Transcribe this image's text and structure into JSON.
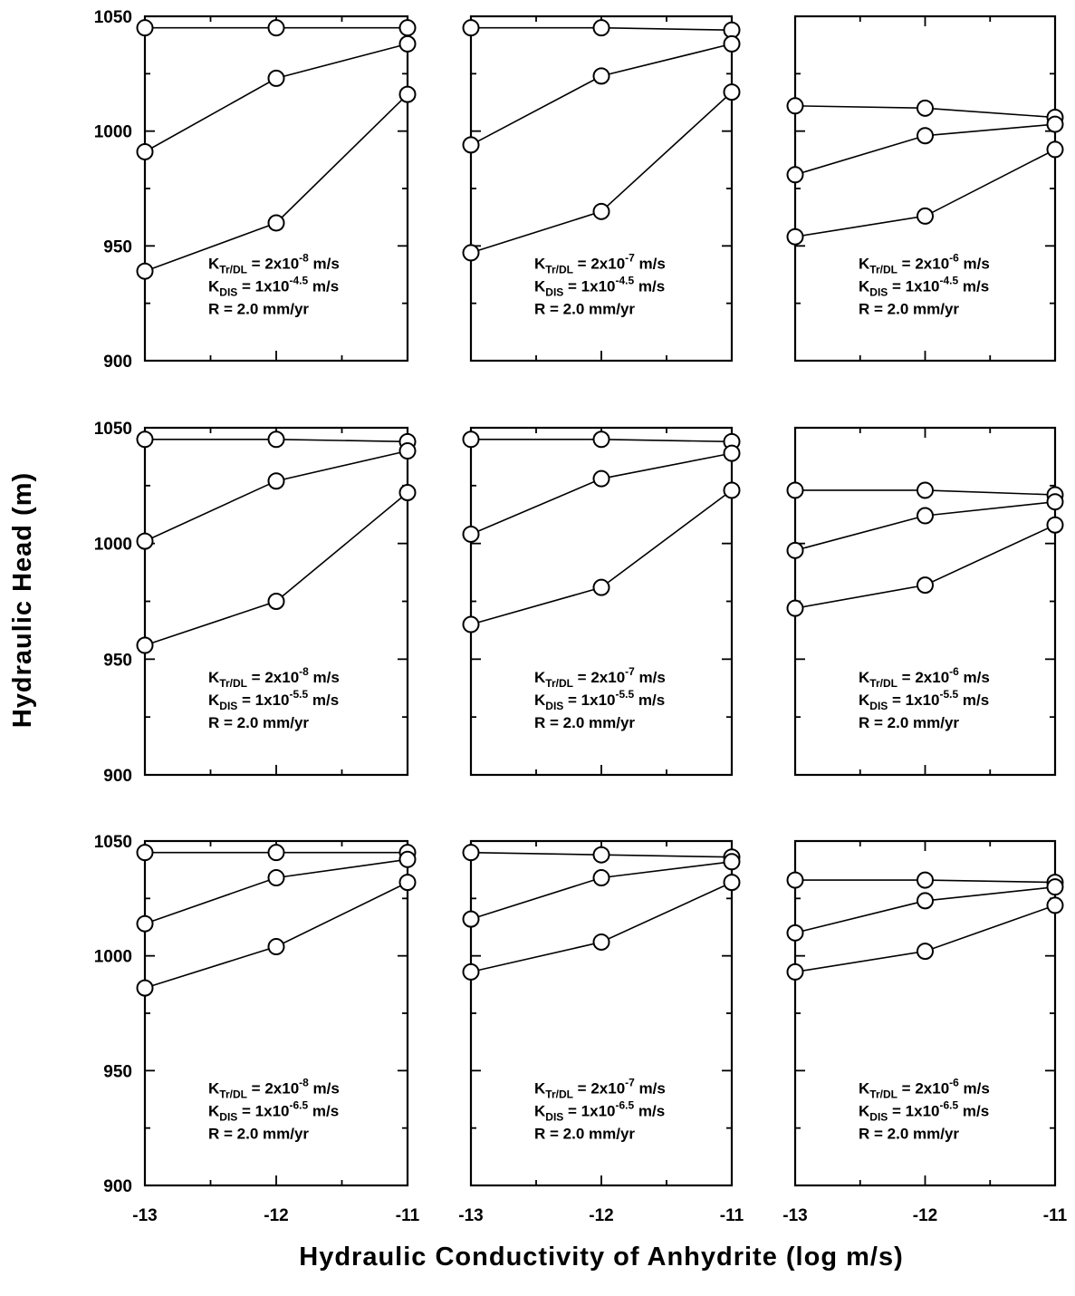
{
  "figure": {
    "ylabel": "Hydraulic Head (m)",
    "xlabel": "Hydraulic Conductivity of Anhydrite (log m/s)"
  },
  "chart_data": [
    {
      "type": "line",
      "xlabel": "",
      "ylabel": "",
      "x": [
        -13,
        -12,
        -11
      ],
      "xlim": [
        -13,
        -11
      ],
      "ylim": [
        900,
        1050
      ],
      "xticks": [
        "-13",
        "-12",
        "-11"
      ],
      "yticks": [
        "900",
        "950",
        "1000",
        "1050"
      ],
      "grid": false,
      "annotation": {
        "k_tr_dl": "2x10",
        "k_tr_dl_exp": "-8",
        "k_dis": "1x10",
        "k_dis_exp": "-4.5",
        "rate": "R = 2.0 mm/yr"
      },
      "series": [
        {
          "values": [
            1045,
            1045,
            1045
          ]
        },
        {
          "values": [
            991,
            1023,
            1038
          ]
        },
        {
          "values": [
            939,
            960,
            1016
          ]
        }
      ]
    },
    {
      "type": "line",
      "xlabel": "",
      "ylabel": "",
      "x": [
        -13,
        -12,
        -11
      ],
      "xlim": [
        -13,
        -11
      ],
      "ylim": [
        900,
        1050
      ],
      "xticks": [
        "-13",
        "-12",
        "-11"
      ],
      "yticks": [
        "900",
        "950",
        "1000",
        "1050"
      ],
      "grid": false,
      "annotation": {
        "k_tr_dl": "2x10",
        "k_tr_dl_exp": "-7",
        "k_dis": "1x10",
        "k_dis_exp": "-4.5",
        "rate": "R = 2.0 mm/yr"
      },
      "series": [
        {
          "values": [
            1045,
            1045,
            1044
          ]
        },
        {
          "values": [
            994,
            1024,
            1038
          ]
        },
        {
          "values": [
            947,
            965,
            1017
          ]
        }
      ]
    },
    {
      "type": "line",
      "xlabel": "",
      "ylabel": "",
      "x": [
        -13,
        -12,
        -11
      ],
      "xlim": [
        -13,
        -11
      ],
      "ylim": [
        900,
        1050
      ],
      "xticks": [
        "-13",
        "-12",
        "-11"
      ],
      "yticks": [
        "900",
        "950",
        "1000",
        "1050"
      ],
      "grid": false,
      "annotation": {
        "k_tr_dl": "2x10",
        "k_tr_dl_exp": "-6",
        "k_dis": "1x10",
        "k_dis_exp": "-4.5",
        "rate": "R = 2.0 mm/yr"
      },
      "series": [
        {
          "values": [
            1011,
            1010,
            1006
          ]
        },
        {
          "values": [
            981,
            998,
            1003
          ]
        },
        {
          "values": [
            954,
            963,
            992
          ]
        }
      ]
    },
    {
      "type": "line",
      "xlabel": "",
      "ylabel": "",
      "x": [
        -13,
        -12,
        -11
      ],
      "xlim": [
        -13,
        -11
      ],
      "ylim": [
        900,
        1050
      ],
      "xticks": [
        "-13",
        "-12",
        "-11"
      ],
      "yticks": [
        "900",
        "950",
        "1000",
        "1050"
      ],
      "grid": false,
      "annotation": {
        "k_tr_dl": "2x10",
        "k_tr_dl_exp": "-8",
        "k_dis": "1x10",
        "k_dis_exp": "-5.5",
        "rate": "R = 2.0 mm/yr"
      },
      "series": [
        {
          "values": [
            1045,
            1045,
            1044
          ]
        },
        {
          "values": [
            1001,
            1027,
            1040
          ]
        },
        {
          "values": [
            956,
            975,
            1022
          ]
        }
      ]
    },
    {
      "type": "line",
      "xlabel": "",
      "ylabel": "",
      "x": [
        -13,
        -12,
        -11
      ],
      "xlim": [
        -13,
        -11
      ],
      "ylim": [
        900,
        1050
      ],
      "xticks": [
        "-13",
        "-12",
        "-11"
      ],
      "yticks": [
        "900",
        "950",
        "1000",
        "1050"
      ],
      "grid": false,
      "annotation": {
        "k_tr_dl": "2x10",
        "k_tr_dl_exp": "-7",
        "k_dis": "1x10",
        "k_dis_exp": "-5.5",
        "rate": "R = 2.0 mm/yr"
      },
      "series": [
        {
          "values": [
            1045,
            1045,
            1044
          ]
        },
        {
          "values": [
            1004,
            1028,
            1039
          ]
        },
        {
          "values": [
            965,
            981,
            1023
          ]
        }
      ]
    },
    {
      "type": "line",
      "xlabel": "",
      "ylabel": "",
      "x": [
        -13,
        -12,
        -11
      ],
      "xlim": [
        -13,
        -11
      ],
      "ylim": [
        900,
        1050
      ],
      "xticks": [
        "-13",
        "-12",
        "-11"
      ],
      "yticks": [
        "900",
        "950",
        "1000",
        "1050"
      ],
      "grid": false,
      "annotation": {
        "k_tr_dl": "2x10",
        "k_tr_dl_exp": "-6",
        "k_dis": "1x10",
        "k_dis_exp": "-5.5",
        "rate": "R = 2.0 mm/yr"
      },
      "series": [
        {
          "values": [
            1023,
            1023,
            1021
          ]
        },
        {
          "values": [
            997,
            1012,
            1018
          ]
        },
        {
          "values": [
            972,
            982,
            1008
          ]
        }
      ]
    },
    {
      "type": "line",
      "xlabel": "",
      "ylabel": "",
      "x": [
        -13,
        -12,
        -11
      ],
      "xlim": [
        -13,
        -11
      ],
      "ylim": [
        900,
        1050
      ],
      "xticks": [
        "-13",
        "-12",
        "-11"
      ],
      "yticks": [
        "900",
        "950",
        "1000",
        "1050"
      ],
      "grid": false,
      "annotation": {
        "k_tr_dl": "2x10",
        "k_tr_dl_exp": "-8",
        "k_dis": "1x10",
        "k_dis_exp": "-6.5",
        "rate": "R = 2.0 mm/yr"
      },
      "series": [
        {
          "values": [
            1045,
            1045,
            1045
          ]
        },
        {
          "values": [
            1014,
            1034,
            1042
          ]
        },
        {
          "values": [
            986,
            1004,
            1032
          ]
        }
      ]
    },
    {
      "type": "line",
      "xlabel": "",
      "ylabel": "",
      "x": [
        -13,
        -12,
        -11
      ],
      "xlim": [
        -13,
        -11
      ],
      "ylim": [
        900,
        1050
      ],
      "xticks": [
        "-13",
        "-12",
        "-11"
      ],
      "yticks": [
        "900",
        "950",
        "1000",
        "1050"
      ],
      "grid": false,
      "annotation": {
        "k_tr_dl": "2x10",
        "k_tr_dl_exp": "-7",
        "k_dis": "1x10",
        "k_dis_exp": "-6.5",
        "rate": "R = 2.0 mm/yr"
      },
      "series": [
        {
          "values": [
            1045,
            1044,
            1043
          ]
        },
        {
          "values": [
            1016,
            1034,
            1041
          ]
        },
        {
          "values": [
            993,
            1006,
            1032
          ]
        }
      ]
    },
    {
      "type": "line",
      "xlabel": "",
      "ylabel": "",
      "x": [
        -13,
        -12,
        -11
      ],
      "xlim": [
        -13,
        -11
      ],
      "ylim": [
        900,
        1050
      ],
      "xticks": [
        "-13",
        "-12",
        "-11"
      ],
      "yticks": [
        "900",
        "950",
        "1000",
        "1050"
      ],
      "grid": false,
      "annotation": {
        "k_tr_dl": "2x10",
        "k_tr_dl_exp": "-6",
        "k_dis": "1x10",
        "k_dis_exp": "-6.5",
        "rate": "R = 2.0 mm/yr"
      },
      "series": [
        {
          "values": [
            1033,
            1033,
            1032
          ]
        },
        {
          "values": [
            1010,
            1024,
            1030
          ]
        },
        {
          "values": [
            993,
            1002,
            1022
          ]
        }
      ]
    }
  ]
}
